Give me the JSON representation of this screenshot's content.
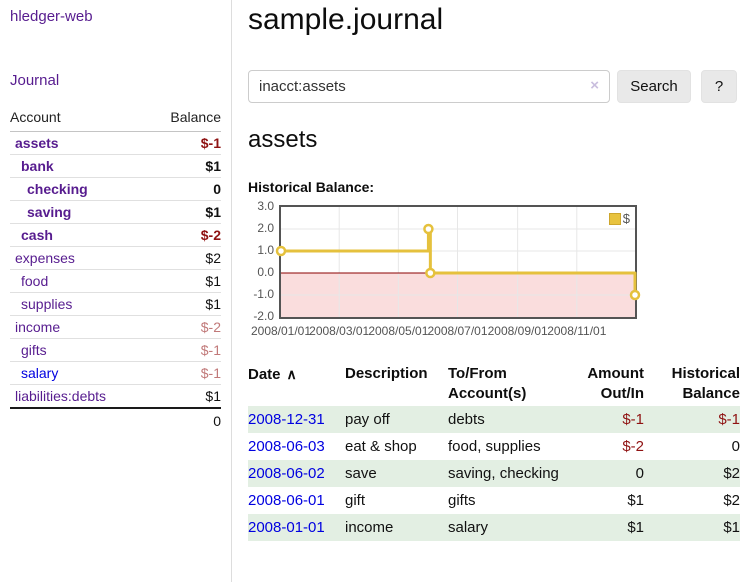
{
  "app": {
    "title": "hledger-web"
  },
  "sidebar": {
    "journal_link": "Journal",
    "accounts": {
      "headers": {
        "account": "Account",
        "balance": "Balance"
      },
      "rows": [
        {
          "name": "assets",
          "balance": "$-1"
        },
        {
          "name": "bank",
          "balance": "$1"
        },
        {
          "name": "checking",
          "balance": "0"
        },
        {
          "name": "saving",
          "balance": "$1"
        },
        {
          "name": "cash",
          "balance": "$-2"
        },
        {
          "name": "expenses",
          "balance": "$2"
        },
        {
          "name": "food",
          "balance": "$1"
        },
        {
          "name": "supplies",
          "balance": "$1"
        },
        {
          "name": "income",
          "balance": "$-2"
        },
        {
          "name": "gifts",
          "balance": "$-1"
        },
        {
          "name": "salary",
          "balance": "$-1"
        },
        {
          "name": "liabilities:debts",
          "balance": "$1"
        }
      ],
      "total": "0"
    }
  },
  "main": {
    "title": "sample.journal",
    "search": {
      "value": "inacct:assets",
      "clear_icon": "×",
      "search_button": "Search",
      "help_button": "?"
    },
    "account_heading": "assets",
    "chart_heading": "Historical Balance:"
  },
  "chart_data": {
    "type": "line",
    "step": true,
    "title": "Historical Balance:",
    "series": [
      {
        "name": "$",
        "color": "#e5c13d",
        "points": [
          [
            "2008-01-01",
            1
          ],
          [
            "2008-06-01",
            2
          ],
          [
            "2008-06-03",
            0
          ],
          [
            "2008-12-31",
            -1
          ]
        ]
      }
    ],
    "xlim": [
      "2008-01-01",
      "2008-12-31"
    ],
    "ylim": [
      -2,
      3
    ],
    "y_ticks": [
      3.0,
      2.0,
      1.0,
      0.0,
      -1.0,
      -2.0
    ],
    "x_ticks": [
      "2008/01/01",
      "2008/03/01",
      "2008/05/01",
      "2008/07/01",
      "2008/09/01",
      "2008/11/01"
    ],
    "legend": [
      "$"
    ],
    "legend_position": "top-right",
    "grid": true,
    "negative_fill": "#fadddd",
    "zero_line_color": "#8b0000"
  },
  "register": {
    "headers": {
      "date": "Date",
      "sort_icon": "∧",
      "description": "Description",
      "accounts": "To/From Account(s)",
      "amount": "Amount Out/In",
      "balance": "Historical Balance"
    },
    "rows": [
      {
        "date": "2008-12-31",
        "description": "pay off",
        "accounts": "debts",
        "amount": "$-1",
        "balance": "$-1"
      },
      {
        "date": "2008-06-03",
        "description": "eat & shop",
        "accounts": "food, supplies",
        "amount": "$-2",
        "balance": "0"
      },
      {
        "date": "2008-06-02",
        "description": "save",
        "accounts": "saving, checking",
        "amount": "0",
        "balance": "$2"
      },
      {
        "date": "2008-06-01",
        "description": "gift",
        "accounts": "gifts",
        "amount": "$1",
        "balance": "$2"
      },
      {
        "date": "2008-01-01",
        "description": "income",
        "accounts": "salary",
        "amount": "$1",
        "balance": "$1"
      }
    ]
  }
}
